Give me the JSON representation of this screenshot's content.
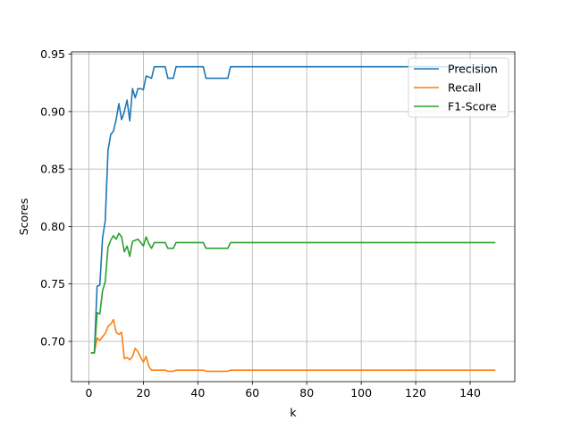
{
  "chart_data": {
    "type": "line",
    "title": "",
    "xlabel": "k",
    "ylabel": "Scores",
    "xlim": [
      -6.4,
      156.4
    ],
    "ylim": [
      0.665,
      0.952
    ],
    "xticks": [
      0,
      20,
      40,
      60,
      80,
      100,
      120,
      140
    ],
    "yticks": [
      0.7,
      0.75,
      0.8,
      0.85,
      0.9,
      0.95
    ],
    "xtick_labels": [
      "0",
      "20",
      "40",
      "60",
      "80",
      "100",
      "120",
      "140"
    ],
    "ytick_labels": [
      "0.70",
      "0.75",
      "0.80",
      "0.85",
      "0.90",
      "0.95"
    ],
    "grid": true,
    "legend_position": "top-right",
    "series": [
      {
        "name": "Precision",
        "color": "#1f77b4",
        "x": [
          1,
          2,
          3,
          4,
          5,
          6,
          7,
          8,
          9,
          10,
          11,
          12,
          13,
          14,
          15,
          16,
          17,
          18,
          19,
          20,
          21,
          22,
          23,
          24,
          25,
          26,
          27,
          28,
          29,
          30,
          31,
          32,
          41,
          42,
          43,
          51,
          52,
          149
        ],
        "y": [
          0.69,
          0.69,
          0.748,
          0.749,
          0.79,
          0.805,
          0.866,
          0.88,
          0.883,
          0.893,
          0.907,
          0.893,
          0.9,
          0.91,
          0.892,
          0.92,
          0.912,
          0.92,
          0.92,
          0.919,
          0.931,
          0.93,
          0.929,
          0.939,
          0.939,
          0.939,
          0.939,
          0.939,
          0.929,
          0.929,
          0.929,
          0.939,
          0.939,
          0.939,
          0.929,
          0.929,
          0.939,
          0.939
        ]
      },
      {
        "name": "Recall",
        "color": "#ff7f0e",
        "x": [
          1,
          2,
          3,
          4,
          5,
          6,
          7,
          8,
          9,
          10,
          11,
          12,
          13,
          14,
          15,
          16,
          17,
          18,
          19,
          20,
          21,
          22,
          23,
          24,
          25,
          26,
          27,
          28,
          29,
          30,
          31,
          32,
          41,
          42,
          43,
          51,
          52,
          149
        ],
        "y": [
          0.69,
          0.69,
          0.703,
          0.701,
          0.704,
          0.707,
          0.713,
          0.715,
          0.719,
          0.708,
          0.706,
          0.708,
          0.685,
          0.686,
          0.684,
          0.687,
          0.694,
          0.691,
          0.686,
          0.682,
          0.687,
          0.678,
          0.675,
          0.675,
          0.675,
          0.675,
          0.675,
          0.675,
          0.674,
          0.674,
          0.674,
          0.675,
          0.675,
          0.675,
          0.674,
          0.674,
          0.675,
          0.675
        ]
      },
      {
        "name": "F1-Score",
        "color": "#2ca02c",
        "x": [
          1,
          2,
          3,
          4,
          5,
          6,
          7,
          8,
          9,
          10,
          11,
          12,
          13,
          14,
          15,
          16,
          17,
          18,
          19,
          20,
          21,
          22,
          23,
          24,
          25,
          26,
          27,
          28,
          29,
          30,
          31,
          32,
          41,
          42,
          43,
          51,
          52,
          149
        ],
        "y": [
          0.69,
          0.69,
          0.725,
          0.724,
          0.744,
          0.752,
          0.782,
          0.788,
          0.792,
          0.789,
          0.794,
          0.791,
          0.778,
          0.783,
          0.774,
          0.787,
          0.788,
          0.789,
          0.786,
          0.783,
          0.791,
          0.785,
          0.781,
          0.786,
          0.786,
          0.786,
          0.786,
          0.786,
          0.781,
          0.781,
          0.781,
          0.786,
          0.786,
          0.786,
          0.781,
          0.781,
          0.786,
          0.786
        ]
      }
    ]
  }
}
